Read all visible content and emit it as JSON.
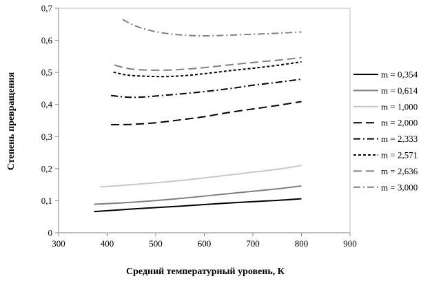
{
  "chart_data": {
    "type": "line",
    "title": "",
    "xlabel": "Средний температурный уровень, К",
    "ylabel": "Степень превращения",
    "xlim": [
      300,
      900
    ],
    "ylim": [
      0,
      0.7
    ],
    "x_ticks": [
      "300",
      "400",
      "500",
      "600",
      "700",
      "800",
      "900"
    ],
    "y_ticks": [
      "0",
      "0,1",
      "0,2",
      "0,3",
      "0,4",
      "0,5",
      "0,6",
      "0,7"
    ],
    "grid": false,
    "legend_position": "right",
    "series": [
      {
        "name": "m = 0,354",
        "color": "#000000",
        "dash": "solid",
        "points": [
          [
            373,
            0.066
          ],
          [
            450,
            0.074
          ],
          [
            550,
            0.083
          ],
          [
            650,
            0.093
          ],
          [
            750,
            0.101
          ],
          [
            800,
            0.106
          ]
        ]
      },
      {
        "name": "m = 0,614",
        "color": "#7f7f7f",
        "dash": "solid",
        "points": [
          [
            373,
            0.089
          ],
          [
            450,
            0.095
          ],
          [
            550,
            0.107
          ],
          [
            650,
            0.122
          ],
          [
            750,
            0.137
          ],
          [
            800,
            0.146
          ]
        ]
      },
      {
        "name": "m = 1,000",
        "color": "#c8c8c8",
        "dash": "solid",
        "points": [
          [
            385,
            0.143
          ],
          [
            450,
            0.15
          ],
          [
            550,
            0.163
          ],
          [
            650,
            0.18
          ],
          [
            750,
            0.198
          ],
          [
            800,
            0.21
          ]
        ]
      },
      {
        "name": "m = 2,000",
        "color": "#000000",
        "dash": "long-dash",
        "points": [
          [
            408,
            0.337
          ],
          [
            450,
            0.338
          ],
          [
            500,
            0.343
          ],
          [
            550,
            0.352
          ],
          [
            600,
            0.362
          ],
          [
            650,
            0.375
          ],
          [
            700,
            0.386
          ],
          [
            750,
            0.397
          ],
          [
            800,
            0.409
          ]
        ]
      },
      {
        "name": "m = 2,333",
        "color": "#000000",
        "dash": "dash-dot",
        "points": [
          [
            408,
            0.428
          ],
          [
            440,
            0.423
          ],
          [
            470,
            0.423
          ],
          [
            520,
            0.429
          ],
          [
            580,
            0.437
          ],
          [
            650,
            0.449
          ],
          [
            700,
            0.46
          ],
          [
            750,
            0.469
          ],
          [
            800,
            0.479
          ]
        ]
      },
      {
        "name": "m = 2,571",
        "color": "#000000",
        "dash": "short-dash",
        "points": [
          [
            413,
            0.501
          ],
          [
            440,
            0.492
          ],
          [
            480,
            0.488
          ],
          [
            520,
            0.487
          ],
          [
            560,
            0.49
          ],
          [
            600,
            0.496
          ],
          [
            650,
            0.505
          ],
          [
            700,
            0.513
          ],
          [
            750,
            0.522
          ],
          [
            800,
            0.533
          ]
        ]
      },
      {
        "name": "m = 2,636",
        "color": "#808080",
        "dash": "long-dash",
        "points": [
          [
            415,
            0.523
          ],
          [
            440,
            0.513
          ],
          [
            470,
            0.508
          ],
          [
            520,
            0.507
          ],
          [
            560,
            0.51
          ],
          [
            600,
            0.515
          ],
          [
            650,
            0.523
          ],
          [
            700,
            0.531
          ],
          [
            750,
            0.538
          ],
          [
            800,
            0.546
          ]
        ]
      },
      {
        "name": "m = 3,000",
        "color": "#808080",
        "dash": "dash-dot",
        "points": [
          [
            432,
            0.665
          ],
          [
            460,
            0.644
          ],
          [
            500,
            0.627
          ],
          [
            550,
            0.617
          ],
          [
            600,
            0.614
          ],
          [
            650,
            0.616
          ],
          [
            700,
            0.619
          ],
          [
            750,
            0.622
          ],
          [
            800,
            0.626
          ]
        ]
      }
    ]
  }
}
